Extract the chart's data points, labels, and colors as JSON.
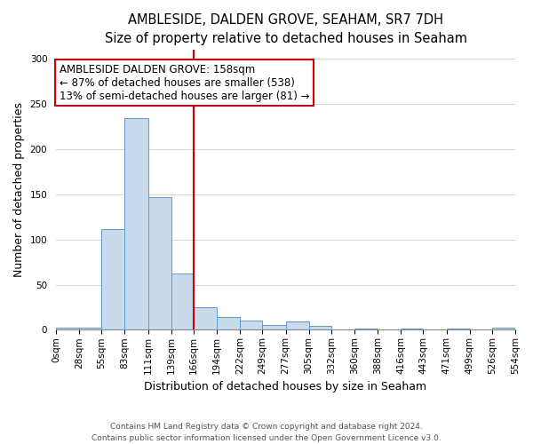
{
  "title": "AMBLESIDE, DALDEN GROVE, SEAHAM, SR7 7DH",
  "subtitle": "Size of property relative to detached houses in Seaham",
  "xlabel": "Distribution of detached houses by size in Seaham",
  "ylabel": "Number of detached properties",
  "footer_line1": "Contains HM Land Registry data © Crown copyright and database right 2024.",
  "footer_line2": "Contains public sector information licensed under the Open Government Licence v3.0.",
  "bin_edges": [
    0,
    28,
    55,
    83,
    111,
    139,
    166,
    194,
    222,
    249,
    277,
    305,
    332,
    360,
    388,
    416,
    443,
    471,
    499,
    526,
    554
  ],
  "bin_labels": [
    "0sqm",
    "28sqm",
    "55sqm",
    "83sqm",
    "111sqm",
    "139sqm",
    "166sqm",
    "194sqm",
    "222sqm",
    "249sqm",
    "277sqm",
    "305sqm",
    "332sqm",
    "360sqm",
    "388sqm",
    "416sqm",
    "443sqm",
    "471sqm",
    "499sqm",
    "526sqm",
    "554sqm"
  ],
  "counts": [
    2,
    2,
    112,
    235,
    147,
    62,
    25,
    14,
    10,
    5,
    9,
    4,
    0,
    1,
    0,
    1,
    0,
    1,
    0,
    2
  ],
  "bar_color": "#c9daea",
  "bar_edge_color": "#5b9bd5",
  "vline_x": 166,
  "vline_color": "#cc0000",
  "annotation_title": "AMBLESIDE DALDEN GROVE: 158sqm",
  "annotation_line1": "← 87% of detached houses are smaller (538)",
  "annotation_line2": "13% of semi-detached houses are larger (81) →",
  "annotation_box_color": "#ffffff",
  "annotation_box_edge": "#cc0000",
  "ylim": [
    0,
    310
  ],
  "yticks": [
    0,
    50,
    100,
    150,
    200,
    250,
    300
  ],
  "title_fontsize": 10.5,
  "subtitle_fontsize": 9.5,
  "annotation_fontsize": 8.5,
  "axis_label_fontsize": 9,
  "tick_fontsize": 7.5,
  "footer_fontsize": 6.5
}
